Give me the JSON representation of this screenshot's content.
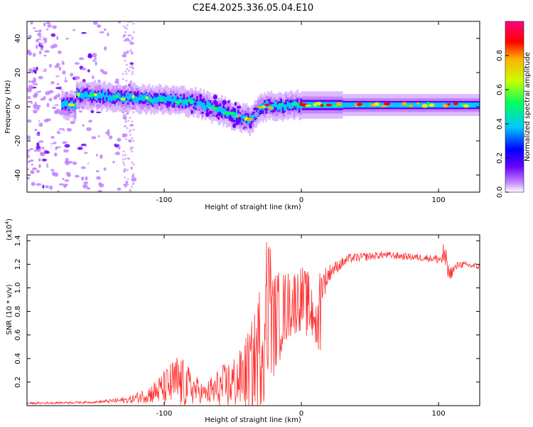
{
  "title": "C2E4.2025.336.05.04.E10",
  "chart_data": [
    {
      "type": "heatmap",
      "xlabel": "Height of straight line (km)",
      "ylabel": "Frequency (Hz)",
      "xlim": [
        -200,
        130
      ],
      "ylim": [
        -50,
        50
      ],
      "xticks": [
        -100,
        0,
        100
      ],
      "yticks": [
        -40,
        -20,
        0,
        20,
        40
      ],
      "colorbar": {
        "label": "Normalized spectral amplitude",
        "range": [
          0,
          1
        ],
        "ticks": [
          "0.0",
          "0.2",
          "0.4",
          "0.6",
          "0.8"
        ],
        "colors": [
          "#ffffff",
          "#c080ff",
          "#6a00ff",
          "#0000ff",
          "#00c8ff",
          "#00ff60",
          "#c8ff00",
          "#ffb000",
          "#ff0000",
          "#ff0080"
        ]
      },
      "band_center": [
        {
          "x": -165,
          "y": 7
        },
        {
          "x": -120,
          "y": 5
        },
        {
          "x": -80,
          "y": 3
        },
        {
          "x": -60,
          "y": -2
        },
        {
          "x": -38,
          "y": -8
        },
        {
          "x": -30,
          "y": 0
        },
        {
          "x": 0,
          "y": 1
        },
        {
          "x": 60,
          "y": 1
        },
        {
          "x": 130,
          "y": 1
        }
      ]
    },
    {
      "type": "line",
      "xlabel": "Height of straight line (km)",
      "ylabel": "SNR (10 * v/v)",
      "yscale_label": "(x10",
      "yscale_exp": "4",
      "yscale_close": ")",
      "xlim": [
        -200,
        130
      ],
      "ylim": [
        0,
        1.45
      ],
      "xticks": [
        -100,
        0,
        100
      ],
      "yticks": [
        "0.2",
        "0.4",
        "0.6",
        "0.8",
        "1.0",
        "1.2",
        "1.4"
      ],
      "ytick_values": [
        0.2,
        0.4,
        0.6,
        0.8,
        1.0,
        1.2,
        1.4
      ],
      "series": [
        {
          "name": "SNR",
          "color": "#ff3030",
          "envelope": [
            {
              "x": -200,
              "base": 0.02,
              "amp": 0.01
            },
            {
              "x": -150,
              "base": 0.03,
              "amp": 0.01
            },
            {
              "x": -125,
              "base": 0.05,
              "amp": 0.03
            },
            {
              "x": -110,
              "base": 0.1,
              "amp": 0.08
            },
            {
              "x": -100,
              "base": 0.15,
              "amp": 0.15
            },
            {
              "x": -90,
              "base": 0.2,
              "amp": 0.25
            },
            {
              "x": -80,
              "base": 0.15,
              "amp": 0.15
            },
            {
              "x": -70,
              "base": 0.1,
              "amp": 0.07
            },
            {
              "x": -65,
              "base": 0.12,
              "amp": 0.15
            },
            {
              "x": -55,
              "base": 0.17,
              "amp": 0.2
            },
            {
              "x": -45,
              "base": 0.22,
              "amp": 0.25
            },
            {
              "x": -35,
              "base": 0.35,
              "amp": 0.4
            },
            {
              "x": -28,
              "base": 0.6,
              "amp": 0.6
            },
            {
              "x": -20,
              "base": 0.7,
              "amp": 0.45
            },
            {
              "x": -10,
              "base": 0.85,
              "amp": 0.3
            },
            {
              "x": 0,
              "base": 0.92,
              "amp": 0.28
            },
            {
              "x": 8,
              "base": 0.8,
              "amp": 0.3
            },
            {
              "x": 15,
              "base": 1.02,
              "amp": 0.15
            },
            {
              "x": 22,
              "base": 1.15,
              "amp": 0.06
            },
            {
              "x": 35,
              "base": 1.25,
              "amp": 0.04
            },
            {
              "x": 60,
              "base": 1.28,
              "amp": 0.03
            },
            {
              "x": 95,
              "base": 1.25,
              "amp": 0.03
            },
            {
              "x": 104,
              "base": 1.24,
              "amp": 0.06
            },
            {
              "x": 108,
              "base": 1.12,
              "amp": 0.06
            },
            {
              "x": 115,
              "base": 1.2,
              "amp": 0.03
            },
            {
              "x": 130,
              "base": 1.18,
              "amp": 0.03
            }
          ]
        }
      ]
    }
  ]
}
